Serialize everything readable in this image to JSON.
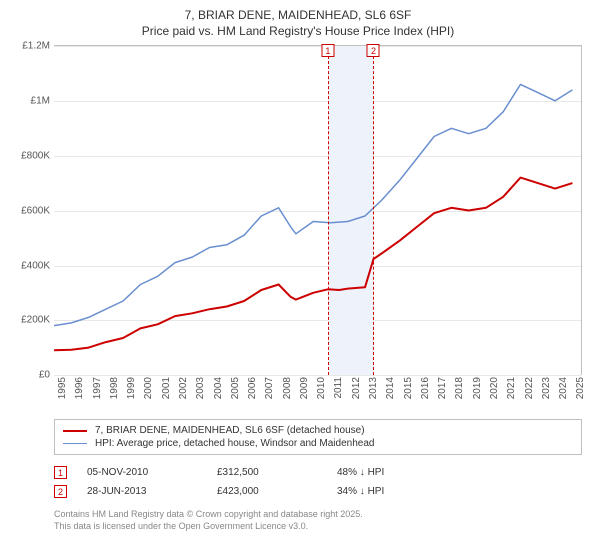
{
  "title_line1": "7, BRIAR DENE, MAIDENHEAD, SL6 6SF",
  "title_line2": "Price paid vs. HM Land Registry's House Price Index (HPI)",
  "chart": {
    "type": "line",
    "xlim": [
      1995,
      2025.5
    ],
    "ylim": [
      0,
      1200000
    ],
    "ytick_step": 200000,
    "ylabels": [
      "£0",
      "£200K",
      "£400K",
      "£600K",
      "£800K",
      "£1M",
      "£1.2M"
    ],
    "xlabels": [
      "1995",
      "1996",
      "1997",
      "1998",
      "1999",
      "2000",
      "2001",
      "2002",
      "2003",
      "2004",
      "2005",
      "2006",
      "2007",
      "2008",
      "2009",
      "2010",
      "2011",
      "2012",
      "2013",
      "2014",
      "2015",
      "2016",
      "2017",
      "2018",
      "2019",
      "2020",
      "2021",
      "2022",
      "2023",
      "2024",
      "2025"
    ],
    "background_color": "#ffffff",
    "grid_color": "#e8e8e8",
    "axis_color": "#c0c0c0",
    "label_fontsize": 10,
    "label_color": "#555555",
    "marker_band": {
      "from": 2010.85,
      "to": 2013.49,
      "color": "#eef2fa"
    },
    "markers": [
      {
        "id": "1",
        "x": 2010.85
      },
      {
        "id": "2",
        "x": 2013.49
      }
    ],
    "marker_line_color": "#cc0000",
    "series": [
      {
        "name": "price_paid",
        "color": "#cc0000",
        "line_width": 2,
        "points": [
          [
            1995,
            90000
          ],
          [
            1996,
            92000
          ],
          [
            1997,
            100000
          ],
          [
            1998,
            120000
          ],
          [
            1999,
            135000
          ],
          [
            2000,
            170000
          ],
          [
            2001,
            185000
          ],
          [
            2002,
            215000
          ],
          [
            2003,
            225000
          ],
          [
            2004,
            240000
          ],
          [
            2005,
            250000
          ],
          [
            2006,
            270000
          ],
          [
            2007,
            310000
          ],
          [
            2008,
            330000
          ],
          [
            2008.7,
            285000
          ],
          [
            2009,
            275000
          ],
          [
            2010,
            300000
          ],
          [
            2010.85,
            312500
          ],
          [
            2011.5,
            310000
          ],
          [
            2012,
            315000
          ],
          [
            2013,
            320000
          ],
          [
            2013.49,
            423000
          ],
          [
            2014,
            445000
          ],
          [
            2015,
            490000
          ],
          [
            2016,
            540000
          ],
          [
            2017,
            590000
          ],
          [
            2018,
            610000
          ],
          [
            2019,
            600000
          ],
          [
            2020,
            610000
          ],
          [
            2021,
            650000
          ],
          [
            2022,
            720000
          ],
          [
            2023,
            700000
          ],
          [
            2024,
            680000
          ],
          [
            2025,
            700000
          ]
        ]
      },
      {
        "name": "hpi",
        "color": "#6a8fd0",
        "line_width": 1.5,
        "points": [
          [
            1995,
            180000
          ],
          [
            1996,
            190000
          ],
          [
            1997,
            210000
          ],
          [
            1998,
            240000
          ],
          [
            1999,
            270000
          ],
          [
            2000,
            330000
          ],
          [
            2001,
            360000
          ],
          [
            2002,
            410000
          ],
          [
            2003,
            430000
          ],
          [
            2004,
            465000
          ],
          [
            2005,
            475000
          ],
          [
            2006,
            510000
          ],
          [
            2007,
            580000
          ],
          [
            2008,
            610000
          ],
          [
            2008.7,
            540000
          ],
          [
            2009,
            515000
          ],
          [
            2010,
            560000
          ],
          [
            2011,
            555000
          ],
          [
            2012,
            560000
          ],
          [
            2013,
            580000
          ],
          [
            2014,
            640000
          ],
          [
            2015,
            710000
          ],
          [
            2016,
            790000
          ],
          [
            2017,
            870000
          ],
          [
            2018,
            900000
          ],
          [
            2019,
            880000
          ],
          [
            2020,
            900000
          ],
          [
            2021,
            960000
          ],
          [
            2022,
            1060000
          ],
          [
            2023,
            1030000
          ],
          [
            2024,
            1000000
          ],
          [
            2025,
            1040000
          ]
        ]
      }
    ]
  },
  "legend": {
    "items": [
      {
        "color": "#cc0000",
        "width": 2,
        "label": "7, BRIAR DENE, MAIDENHEAD, SL6 6SF (detached house)"
      },
      {
        "color": "#6a8fd0",
        "width": 1.5,
        "label": "HPI: Average price, detached house, Windsor and Maidenhead"
      }
    ]
  },
  "sales": [
    {
      "id": "1",
      "date": "05-NOV-2010",
      "price": "£312,500",
      "diff": "48% ↓ HPI"
    },
    {
      "id": "2",
      "date": "28-JUN-2013",
      "price": "£423,000",
      "diff": "34% ↓ HPI"
    }
  ],
  "footer_line1": "Contains HM Land Registry data © Crown copyright and database right 2025.",
  "footer_line2": "This data is licensed under the Open Government Licence v3.0."
}
